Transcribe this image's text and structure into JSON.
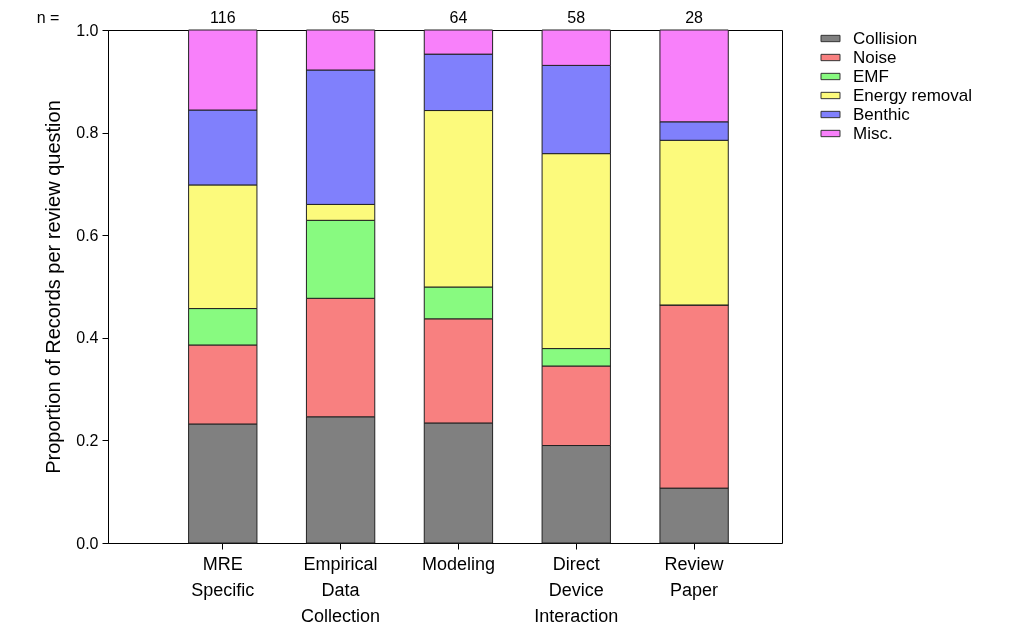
{
  "chart_data": {
    "type": "bar",
    "stacked": true,
    "ylabel": "Proportion of Records per review question",
    "categories": [
      "MRE Specific",
      "Empirical Data Collection",
      "Modeling",
      "Direct Device Interaction",
      "Review Paper"
    ],
    "series": [
      {
        "name": "Collision",
        "color": "#808080",
        "values": [
          0.232,
          0.246,
          0.234,
          0.19,
          0.107
        ]
      },
      {
        "name": "Noise",
        "color": "#f88080",
        "values": [
          0.154,
          0.231,
          0.203,
          0.155,
          0.357
        ]
      },
      {
        "name": "EMF",
        "color": "#88fa80",
        "values": [
          0.071,
          0.152,
          0.062,
          0.034,
          0
        ]
      },
      {
        "name": "Energy removal",
        "color": "#fcfa7c",
        "values": [
          0.241,
          0.031,
          0.344,
          0.38,
          0.321
        ]
      },
      {
        "name": "Benthic",
        "color": "#8080fc",
        "values": [
          0.146,
          0.262,
          0.11,
          0.172,
          0.036
        ]
      },
      {
        "name": "Misc.",
        "color": "#f880fa",
        "values": [
          0.156,
          0.078,
          0.047,
          0.069,
          0.179
        ]
      }
    ],
    "ylim": [
      0,
      1
    ],
    "yticks": [
      {
        "value": 0,
        "label": "0.0"
      },
      {
        "value": 0.2,
        "label": "0.2"
      },
      {
        "value": 0.4,
        "label": "0.4"
      },
      {
        "value": 0.6,
        "label": "0.6"
      },
      {
        "value": 0.8,
        "label": "0.8"
      },
      {
        "value": 1,
        "label": "1.0"
      }
    ],
    "grid": false,
    "legend": "top right",
    "annotations": [
      "n =",
      {
        "text": "116",
        "x": "MRE Specific",
        "y": 1
      },
      {
        "text": "65",
        "x": "Empirical Data Collection",
        "y": 1
      },
      {
        "text": "64",
        "x": "Modeling",
        "y": 1
      },
      {
        "text": "58",
        "x": "Direct Device Interaction",
        "y": 1
      },
      {
        "text": "28",
        "x": "Review Paper",
        "y": 1
      }
    ]
  }
}
